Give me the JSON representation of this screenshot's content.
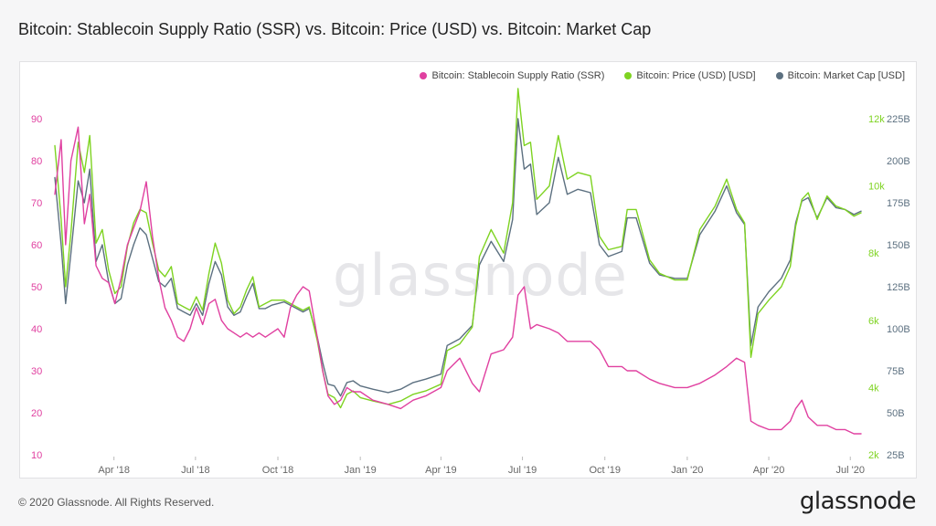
{
  "header": {
    "title": "Bitcoin: Stablecoin Supply Ratio (SSR) vs. Bitcoin: Price (USD) vs. Bitcoin: Market Cap"
  },
  "watermark": "glassnode",
  "footer": {
    "copyright": "© 2020 Glassnode. All Rights Reserved.",
    "logo": "glassnode"
  },
  "colors": {
    "ssr": "#e040a0",
    "price": "#7ed321",
    "mcap": "#5c7080",
    "grid": "#ececef",
    "axis_text": "#666666"
  },
  "chart_data": {
    "type": "line",
    "legend_position": "top-right",
    "grid": false,
    "x_ticks": [
      "Apr '18",
      "Jul '18",
      "Oct '18",
      "Jan '19",
      "Apr '19",
      "Jul '19",
      "Oct '19",
      "Jan '20",
      "Apr '20",
      "Jul '20"
    ],
    "x_tick_dates": [
      "2018-04-01",
      "2018-07-01",
      "2018-10-01",
      "2019-01-01",
      "2019-04-01",
      "2019-07-01",
      "2019-10-01",
      "2020-01-01",
      "2020-04-01",
      "2020-07-01"
    ],
    "xlim": [
      "2018-01-25",
      "2020-07-13"
    ],
    "y_axes": {
      "ssr": {
        "ticks": [
          "10",
          "20",
          "30",
          "40",
          "50",
          "60",
          "70",
          "80",
          "90"
        ],
        "range": [
          10,
          90
        ],
        "position": "left",
        "color": "#e040a0"
      },
      "price": {
        "ticks": [
          "2k",
          "4k",
          "6k",
          "8k",
          "10k",
          "12k"
        ],
        "range": [
          2000,
          12000
        ],
        "position": "right",
        "color": "#7ed321"
      },
      "mcap": {
        "ticks": [
          "25B",
          "50B",
          "75B",
          "100B",
          "125B",
          "150B",
          "175B",
          "200B",
          "225B"
        ],
        "range": [
          25,
          225
        ],
        "position": "right",
        "color": "#5c7080"
      }
    },
    "series": [
      {
        "name": "Bitcoin: Stablecoin Supply Ratio (SSR)",
        "axis": "ssr",
        "color": "#e040a0",
        "x": [
          "2018-01-25",
          "2018-02-01",
          "2018-02-06",
          "2018-02-12",
          "2018-02-20",
          "2018-02-27",
          "2018-03-05",
          "2018-03-12",
          "2018-03-19",
          "2018-03-26",
          "2018-04-02",
          "2018-04-09",
          "2018-04-16",
          "2018-04-23",
          "2018-04-30",
          "2018-05-07",
          "2018-05-14",
          "2018-05-21",
          "2018-05-28",
          "2018-06-04",
          "2018-06-11",
          "2018-06-18",
          "2018-06-25",
          "2018-07-02",
          "2018-07-09",
          "2018-07-16",
          "2018-07-23",
          "2018-07-30",
          "2018-08-06",
          "2018-08-13",
          "2018-08-20",
          "2018-08-27",
          "2018-09-03",
          "2018-09-10",
          "2018-09-17",
          "2018-09-24",
          "2018-10-01",
          "2018-10-08",
          "2018-10-15",
          "2018-10-22",
          "2018-10-29",
          "2018-11-05",
          "2018-11-14",
          "2018-11-20",
          "2018-11-26",
          "2018-12-03",
          "2018-12-10",
          "2018-12-17",
          "2018-12-24",
          "2019-01-01",
          "2019-01-15",
          "2019-02-01",
          "2019-02-15",
          "2019-03-01",
          "2019-03-15",
          "2019-04-01",
          "2019-04-08",
          "2019-04-22",
          "2019-05-06",
          "2019-05-14",
          "2019-05-27",
          "2019-06-10",
          "2019-06-20",
          "2019-06-26",
          "2019-07-03",
          "2019-07-10",
          "2019-07-17",
          "2019-07-31",
          "2019-08-10",
          "2019-08-20",
          "2019-09-01",
          "2019-09-15",
          "2019-09-25",
          "2019-10-05",
          "2019-10-20",
          "2019-10-26",
          "2019-11-05",
          "2019-11-20",
          "2019-12-01",
          "2019-12-18",
          "2020-01-01",
          "2020-01-15",
          "2020-02-01",
          "2020-02-14",
          "2020-02-25",
          "2020-03-05",
          "2020-03-12",
          "2020-03-20",
          "2020-04-01",
          "2020-04-15",
          "2020-04-25",
          "2020-05-01",
          "2020-05-08",
          "2020-05-15",
          "2020-05-25",
          "2020-06-05",
          "2020-06-15",
          "2020-06-25",
          "2020-07-05",
          "2020-07-13"
        ],
        "values": [
          72,
          85,
          60,
          80,
          88,
          65,
          72,
          55,
          52,
          51,
          46,
          52,
          60,
          64,
          68,
          75,
          62,
          52,
          45,
          42,
          38,
          37,
          40,
          45,
          41,
          46,
          47,
          42,
          40,
          39,
          38,
          39,
          38,
          39,
          38,
          39,
          40,
          38,
          45,
          48,
          50,
          49,
          38,
          30,
          24,
          22,
          23,
          26,
          25,
          25,
          23,
          22,
          21,
          23,
          24,
          26,
          30,
          33,
          27,
          25,
          34,
          35,
          38,
          48,
          50,
          40,
          41,
          40,
          39,
          37,
          37,
          37,
          35,
          31,
          31,
          30,
          30,
          28,
          27,
          26,
          26,
          27,
          29,
          31,
          33,
          32,
          18,
          17,
          16,
          16,
          18,
          21,
          23,
          19,
          17,
          17,
          16,
          16,
          15,
          15
        ]
      },
      {
        "name": "Bitcoin: Price (USD) [USD]",
        "axis": "price",
        "color": "#7ed321",
        "x": [
          "2018-01-25",
          "2018-02-01",
          "2018-02-06",
          "2018-02-12",
          "2018-02-20",
          "2018-02-27",
          "2018-03-05",
          "2018-03-12",
          "2018-03-19",
          "2018-03-26",
          "2018-04-02",
          "2018-04-09",
          "2018-04-16",
          "2018-04-23",
          "2018-04-30",
          "2018-05-07",
          "2018-05-14",
          "2018-05-21",
          "2018-05-28",
          "2018-06-04",
          "2018-06-11",
          "2018-06-18",
          "2018-06-25",
          "2018-07-02",
          "2018-07-09",
          "2018-07-16",
          "2018-07-23",
          "2018-07-30",
          "2018-08-06",
          "2018-08-13",
          "2018-08-20",
          "2018-08-27",
          "2018-09-03",
          "2018-09-10",
          "2018-09-17",
          "2018-09-24",
          "2018-10-01",
          "2018-10-08",
          "2018-10-15",
          "2018-10-22",
          "2018-10-29",
          "2018-11-05",
          "2018-11-14",
          "2018-11-20",
          "2018-11-26",
          "2018-12-03",
          "2018-12-10",
          "2018-12-17",
          "2018-12-24",
          "2019-01-01",
          "2019-01-15",
          "2019-02-01",
          "2019-02-15",
          "2019-03-01",
          "2019-03-15",
          "2019-04-01",
          "2019-04-08",
          "2019-04-22",
          "2019-05-06",
          "2019-05-14",
          "2019-05-27",
          "2019-06-10",
          "2019-06-20",
          "2019-06-26",
          "2019-07-03",
          "2019-07-10",
          "2019-07-17",
          "2019-07-31",
          "2019-08-10",
          "2019-08-20",
          "2019-09-01",
          "2019-09-15",
          "2019-09-25",
          "2019-10-05",
          "2019-10-20",
          "2019-10-26",
          "2019-11-05",
          "2019-11-20",
          "2019-12-01",
          "2019-12-18",
          "2020-01-01",
          "2020-01-15",
          "2020-02-01",
          "2020-02-14",
          "2020-02-25",
          "2020-03-05",
          "2020-03-12",
          "2020-03-20",
          "2020-04-01",
          "2020-04-15",
          "2020-04-25",
          "2020-05-01",
          "2020-05-08",
          "2020-05-15",
          "2020-05-25",
          "2020-06-05",
          "2020-06-15",
          "2020-06-25",
          "2020-07-05",
          "2020-07-13"
        ],
        "values": [
          11200,
          9000,
          7000,
          8600,
          11300,
          10400,
          11500,
          8300,
          8700,
          7500,
          6800,
          7000,
          8200,
          8900,
          9300,
          9200,
          8300,
          7500,
          7300,
          7600,
          6500,
          6400,
          6300,
          6700,
          6300,
          7400,
          8300,
          7700,
          6600,
          6200,
          6400,
          6900,
          7300,
          6400,
          6500,
          6600,
          6600,
          6600,
          6500,
          6400,
          6300,
          6400,
          5400,
          4500,
          3800,
          3700,
          3400,
          3800,
          3900,
          3700,
          3600,
          3500,
          3600,
          3800,
          3900,
          4100,
          5100,
          5300,
          5800,
          7900,
          8700,
          8000,
          9500,
          12900,
          11200,
          11300,
          9600,
          10000,
          11500,
          10200,
          10400,
          10300,
          8500,
          8100,
          8200,
          9300,
          9300,
          7800,
          7400,
          7200,
          7200,
          8700,
          9400,
          10200,
          9300,
          8900,
          4900,
          6200,
          6600,
          7000,
          7600,
          8800,
          9600,
          9800,
          9000,
          9700,
          9400,
          9300,
          9100,
          9200
        ]
      },
      {
        "name": "Bitcoin: Market Cap [USD]",
        "axis": "mcap",
        "color": "#5c7080",
        "x": [
          "2018-01-25",
          "2018-02-01",
          "2018-02-06",
          "2018-02-12",
          "2018-02-20",
          "2018-02-27",
          "2018-03-05",
          "2018-03-12",
          "2018-03-19",
          "2018-03-26",
          "2018-04-02",
          "2018-04-09",
          "2018-04-16",
          "2018-04-23",
          "2018-04-30",
          "2018-05-07",
          "2018-05-14",
          "2018-05-21",
          "2018-05-28",
          "2018-06-04",
          "2018-06-11",
          "2018-06-18",
          "2018-06-25",
          "2018-07-02",
          "2018-07-09",
          "2018-07-16",
          "2018-07-23",
          "2018-07-30",
          "2018-08-06",
          "2018-08-13",
          "2018-08-20",
          "2018-08-27",
          "2018-09-03",
          "2018-09-10",
          "2018-09-17",
          "2018-09-24",
          "2018-10-01",
          "2018-10-08",
          "2018-10-15",
          "2018-10-22",
          "2018-10-29",
          "2018-11-05",
          "2018-11-14",
          "2018-11-20",
          "2018-11-26",
          "2018-12-03",
          "2018-12-10",
          "2018-12-17",
          "2018-12-24",
          "2019-01-01",
          "2019-01-15",
          "2019-02-01",
          "2019-02-15",
          "2019-03-01",
          "2019-03-15",
          "2019-04-01",
          "2019-04-08",
          "2019-04-22",
          "2019-05-06",
          "2019-05-14",
          "2019-05-27",
          "2019-06-10",
          "2019-06-20",
          "2019-06-26",
          "2019-07-03",
          "2019-07-10",
          "2019-07-17",
          "2019-07-31",
          "2019-08-10",
          "2019-08-20",
          "2019-09-01",
          "2019-09-15",
          "2019-09-25",
          "2019-10-05",
          "2019-10-20",
          "2019-10-26",
          "2019-11-05",
          "2019-11-20",
          "2019-12-01",
          "2019-12-18",
          "2020-01-01",
          "2020-01-15",
          "2020-02-01",
          "2020-02-14",
          "2020-02-25",
          "2020-03-05",
          "2020-03-12",
          "2020-03-20",
          "2020-04-01",
          "2020-04-15",
          "2020-04-25",
          "2020-05-01",
          "2020-05-08",
          "2020-05-15",
          "2020-05-25",
          "2020-06-05",
          "2020-06-15",
          "2020-06-25",
          "2020-07-05",
          "2020-07-13"
        ],
        "values": [
          190,
          150,
          115,
          145,
          188,
          175,
          195,
          140,
          150,
          128,
          115,
          118,
          138,
          150,
          160,
          156,
          142,
          128,
          125,
          130,
          112,
          110,
          108,
          115,
          108,
          127,
          140,
          132,
          113,
          108,
          110,
          119,
          127,
          112,
          112,
          114,
          115,
          116,
          114,
          112,
          110,
          112,
          95,
          80,
          67,
          66,
          60,
          68,
          69,
          66,
          64,
          62,
          64,
          68,
          70,
          73,
          90,
          94,
          102,
          138,
          152,
          140,
          165,
          225,
          195,
          198,
          168,
          175,
          202,
          180,
          183,
          181,
          150,
          143,
          146,
          166,
          166,
          139,
          132,
          130,
          130,
          156,
          170,
          185,
          169,
          162,
          90,
          113,
          122,
          130,
          141,
          163,
          176,
          178,
          166,
          178,
          172,
          171,
          168,
          170
        ]
      }
    ]
  }
}
